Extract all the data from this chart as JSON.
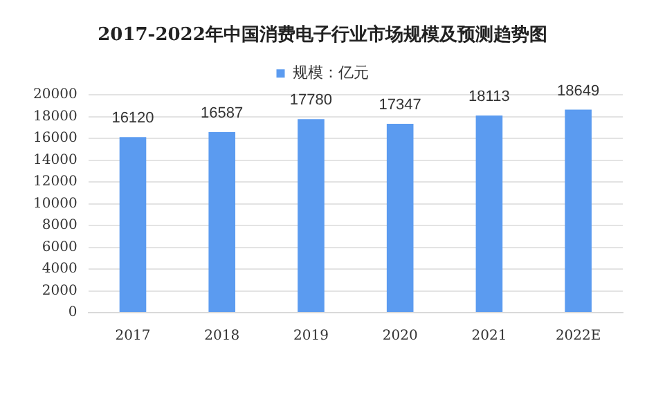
{
  "chart_data": {
    "type": "bar",
    "title": "2017-2022年中国消费电子行业市场规模及预测趋势图",
    "categories": [
      "2017",
      "2018",
      "2019",
      "2020",
      "2021",
      "2022E"
    ],
    "series": [
      {
        "name": "规模：亿元",
        "color": "#5b9bf0",
        "values": [
          16120,
          16587,
          17780,
          17347,
          18113,
          18649
        ]
      }
    ],
    "ylim": [
      0,
      20000
    ],
    "yticks": [
      0,
      2000,
      4000,
      6000,
      8000,
      10000,
      12000,
      14000,
      16000,
      18000,
      20000
    ],
    "grid": "y",
    "legend": "top",
    "data_labels": true
  }
}
